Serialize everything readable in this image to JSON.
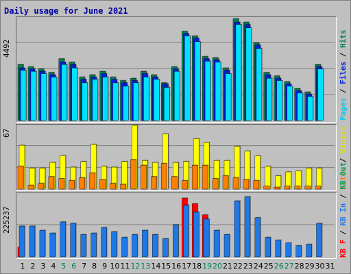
{
  "chart_data": {
    "type": "bar",
    "title": "Daily usage for June 2021",
    "categories": [
      "1",
      "2",
      "3",
      "4",
      "5",
      "6",
      "7",
      "8",
      "9",
      "10",
      "11",
      "12",
      "13",
      "14",
      "15",
      "16",
      "17",
      "18",
      "19",
      "20",
      "21",
      "22",
      "23",
      "24",
      "25",
      "26",
      "27",
      "28",
      "29",
      "30",
      "31"
    ],
    "weekend_days": [
      5,
      6,
      12,
      13,
      19,
      20,
      26,
      27
    ],
    "panels": [
      {
        "name": "hits-files-pages",
        "ymax_label": "4492",
        "ymax": 4492,
        "legend": [
          "Pages",
          "Files",
          "Hits"
        ],
        "series": [
          {
            "name": "Hits",
            "color": "#00805a",
            "values": [
              2450,
              2350,
              2250,
              2100,
              2700,
              2550,
              1900,
              2000,
              2150,
              1900,
              1750,
              1850,
              2150,
              2000,
              1650,
              2350,
              3900,
              3700,
              2800,
              2750,
              2300,
              4450,
              4300,
              3400,
              2100,
              1950,
              1700,
              1400,
              1250,
              2450,
              0
            ]
          },
          {
            "name": "Files",
            "color": "#0020e0",
            "values": [
              2300,
              2250,
              2150,
              2000,
              2550,
              2450,
              1800,
              1900,
              2050,
              1800,
              1650,
              1750,
              2050,
              1900,
              1600,
              2250,
              3800,
              3600,
              2700,
              2650,
              2200,
              4300,
              4200,
              3300,
              2000,
              1850,
              1600,
              1300,
              1150,
              2350,
              0
            ]
          },
          {
            "name": "Pages",
            "color": "#00e0ff",
            "values": [
              2200,
              2150,
              2050,
              1900,
              2450,
              2300,
              1650,
              1800,
              1900,
              1650,
              1500,
              1650,
              1900,
              1800,
              1450,
              2150,
              3700,
              3450,
              2600,
              2550,
              2050,
              4200,
              4050,
              3150,
              1850,
              1750,
              1500,
              1200,
              1050,
              2250,
              0
            ]
          }
        ]
      },
      {
        "name": "visits-sites",
        "ymax_label": "67",
        "ymax": 67,
        "legend": [
          "Visits",
          "Sites"
        ],
        "series": [
          {
            "name": "Visits",
            "color": "#ffff00",
            "values": [
              46,
              22,
              22,
              28,
              35,
              23,
              29,
              47,
              24,
              23,
              29,
              67,
              30,
              28,
              58,
              28,
              29,
              53,
              49,
              30,
              30,
              45,
              40,
              35,
              24,
              14,
              18,
              19,
              22,
              22,
              0
            ]
          },
          {
            "name": "Sites",
            "color": "#ff8000",
            "values": [
              24,
              4,
              6,
              13,
              11,
              9,
              12,
              17,
              10,
              6,
              5,
              31,
              25,
              13,
              27,
              13,
              9,
              25,
              25,
              11,
              14,
              12,
              10,
              9,
              3,
              2,
              3,
              3,
              3,
              3,
              0
            ]
          }
        ]
      },
      {
        "name": "kbin-kbout-kbf",
        "ymax_label": "225237",
        "ymax": 225237,
        "legend": [
          "KB F",
          "KB In",
          "KB Out"
        ],
        "series": [
          {
            "name": "KB F",
            "color": "#ff0000",
            "values": [
              35000,
              0,
              0,
              0,
              0,
              0,
              0,
              0,
              0,
              0,
              0,
              0,
              0,
              0,
              0,
              0,
              210000,
              190000,
              150000,
              0,
              0,
              0,
              0,
              0,
              0,
              0,
              0,
              0,
              0,
              0,
              0
            ]
          },
          {
            "name": "KB In",
            "color": "#1e78e6",
            "values": [
              110000,
              110000,
              95000,
              85000,
              125000,
              120000,
              80000,
              85000,
              105000,
              90000,
              70000,
              80000,
              95000,
              80000,
              65000,
              115000,
              185000,
              160000,
              135000,
              95000,
              80000,
              200000,
              215000,
              140000,
              70000,
              60000,
              50000,
              40000,
              45000,
              120000,
              0
            ]
          },
          {
            "name": "KB Out",
            "color": "#00a060",
            "values": [
              0,
              0,
              0,
              0,
              0,
              0,
              0,
              0,
              0,
              0,
              0,
              0,
              0,
              0,
              0,
              0,
              0,
              0,
              0,
              0,
              0,
              0,
              0,
              0,
              0,
              0,
              0,
              0,
              0,
              0,
              0
            ]
          }
        ]
      }
    ],
    "colors": {
      "background": "#c0c0c0",
      "title": "#0000a0",
      "gridline": "#808080",
      "weekday_label": "#000000",
      "weekend_label": "#00805a"
    }
  }
}
